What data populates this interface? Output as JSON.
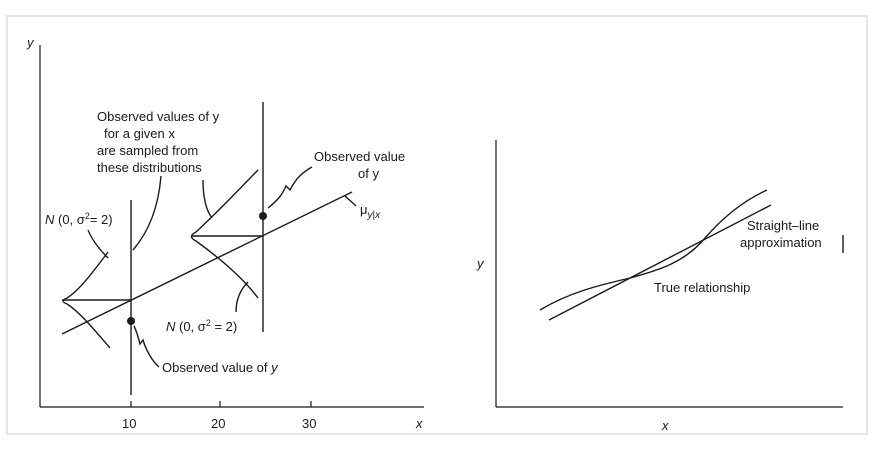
{
  "left_diagram": {
    "y_axis_label": "y",
    "x_axis_label": "x",
    "x_ticks": [
      "10",
      "20",
      "30"
    ],
    "annotation_observed_values": [
      "Observed values of y",
      "for a given x",
      "are sampled from",
      "these distributions"
    ],
    "annotation_observed_value_top": [
      "Observed value",
      "of y"
    ],
    "annotation_observed_value_bottom": "Observed value of y",
    "dist_label_left": "N (0, σ2 = 2)",
    "dist_label_right": "N (0, σ2 = 2)",
    "mean_line_label": "μy|x"
  },
  "right_diagram": {
    "y_axis_label": "y",
    "x_axis_label": "x",
    "label_straight_line": [
      "Straight–line",
      "approximation"
    ],
    "label_true_relationship": "True relationship"
  }
}
